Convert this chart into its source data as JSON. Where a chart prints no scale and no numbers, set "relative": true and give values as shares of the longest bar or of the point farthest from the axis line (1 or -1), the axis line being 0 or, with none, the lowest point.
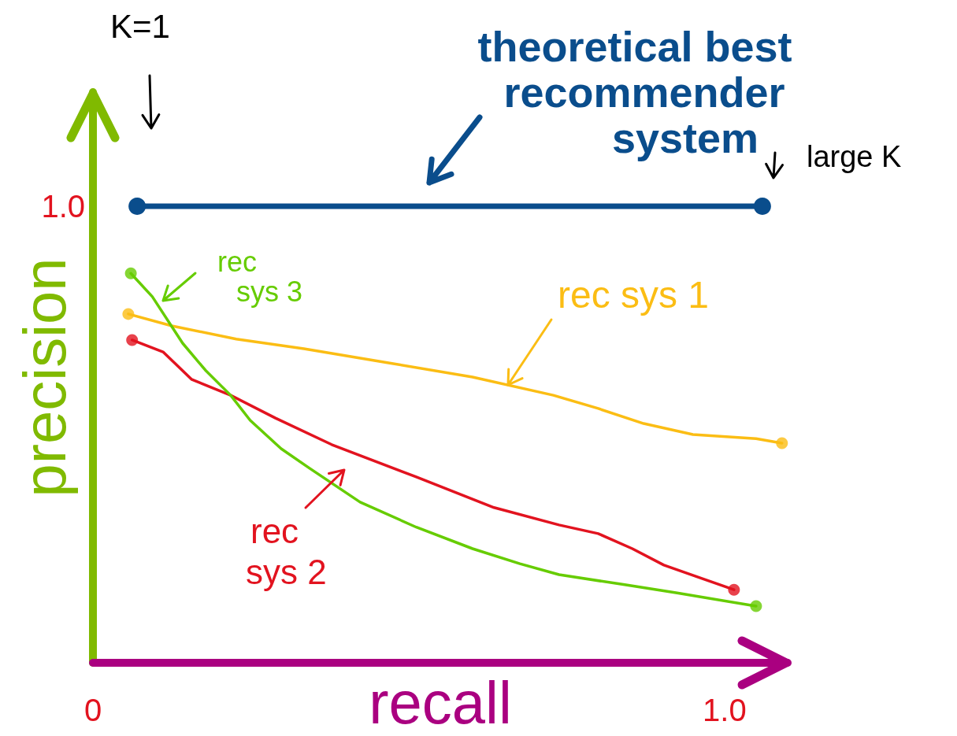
{
  "chart_data": {
    "type": "line",
    "xlabel": "recall",
    "ylabel": "precision",
    "xlim": [
      0,
      1.1
    ],
    "xticks": [
      0,
      {
        "value": 1,
        "label": "1.0"
      }
    ],
    "relative": true,
    "grid": false,
    "line_style": "solid",
    "annotations": [
      "K=1",
      "large K",
      "1.0"
    ],
    "series": [
      {
        "name": "theoretical best recommender system",
        "color": "#0a4d8c",
        "marker": "circle",
        "x": [
          0.07,
          1.06
        ],
        "values": [
          1.0,
          1.0
        ]
      },
      {
        "name": "rec sys 1",
        "color": "#fbbd14",
        "marker": "none",
        "x": [
          0.056,
          0.125,
          0.227,
          0.334,
          0.468,
          0.601,
          0.729,
          0.8,
          0.872,
          0.95,
          1.05,
          1.091
        ],
        "values": [
          0.764,
          0.738,
          0.709,
          0.688,
          0.657,
          0.626,
          0.586,
          0.557,
          0.524,
          0.5,
          0.491,
          0.481
        ]
      },
      {
        "name": "rec sys 2",
        "color": "#e2131f",
        "marker": "none",
        "x": [
          0.062,
          0.111,
          0.156,
          0.218,
          0.289,
          0.378,
          0.512,
          0.635,
          0.738,
          0.8,
          0.854,
          0.904,
          0.966,
          1.015
        ],
        "values": [
          0.707,
          0.681,
          0.621,
          0.586,
          0.536,
          0.478,
          0.407,
          0.34,
          0.302,
          0.283,
          0.25,
          0.214,
          0.184,
          0.16
        ]
      },
      {
        "name": "rec sys 3",
        "color": "#66cc00",
        "marker": "none",
        "x": [
          0.06,
          0.094,
          0.142,
          0.178,
          0.218,
          0.249,
          0.298,
          0.343,
          0.423,
          0.512,
          0.601,
          0.676,
          0.738,
          0.842,
          0.925,
          1.05
        ],
        "values": [
          0.853,
          0.802,
          0.7,
          0.641,
          0.586,
          0.531,
          0.469,
          0.426,
          0.352,
          0.297,
          0.25,
          0.217,
          0.193,
          0.171,
          0.153,
          0.124
        ]
      },
      {
        "type": "scatter",
        "color": "#fbbd14",
        "marker": "circle",
        "x": [
          0.056,
          1.091
        ],
        "values": [
          0.764,
          0.481
        ]
      },
      {
        "type": "scatter",
        "color": "#e2131f",
        "marker": "circle",
        "x": [
          0.062,
          1.015
        ],
        "values": [
          0.707,
          0.16
        ]
      },
      {
        "type": "scatter",
        "color": "#66cc00",
        "marker": "circle",
        "x": [
          0.06,
          1.05
        ],
        "values": [
          0.853,
          0.124
        ]
      }
    ]
  }
}
